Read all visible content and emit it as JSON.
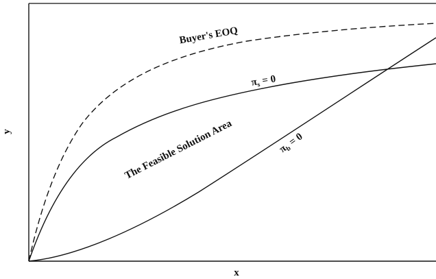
{
  "axes": {
    "x_label": "x",
    "y_label": "y"
  },
  "curves": {
    "buyers_eoq": {
      "label": "Buyer's EOQ"
    },
    "pi_s": {
      "symbol": "π",
      "subscript": "s",
      "rest": "= 0"
    },
    "pi_b": {
      "symbol": "π",
      "subscript": "b",
      "rest": "= 0"
    }
  },
  "region": {
    "label": "The Feasible Solution Area"
  }
}
